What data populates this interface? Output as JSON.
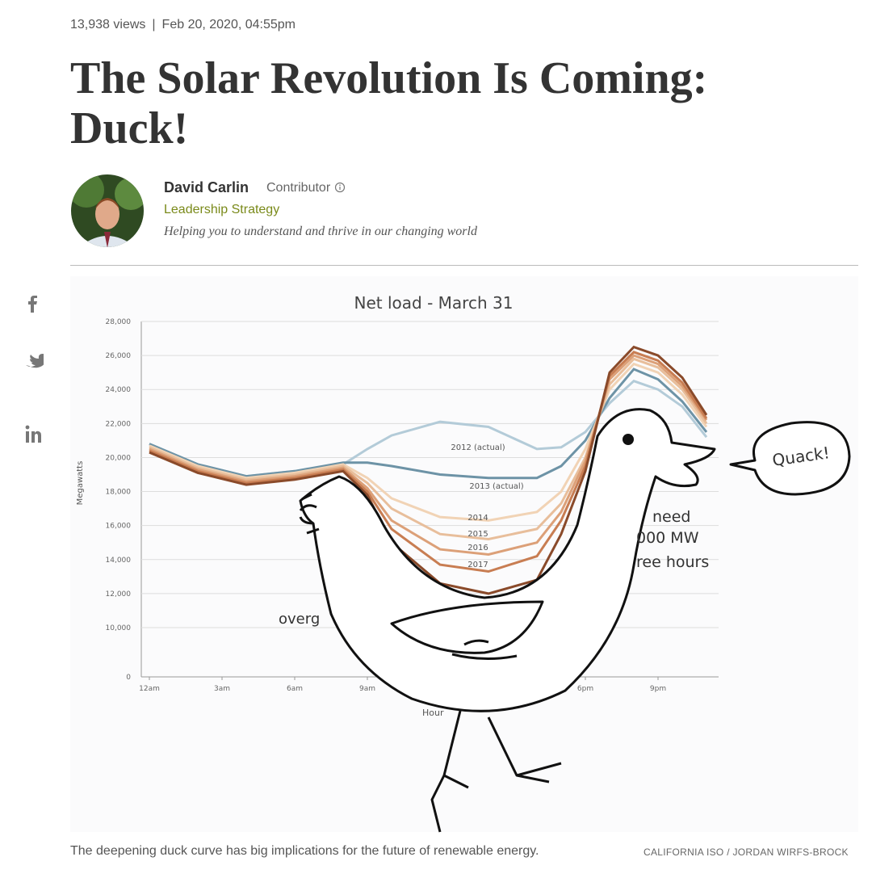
{
  "header": {
    "views": "13,938 views",
    "separator": "|",
    "date": "Feb 20, 2020, 04:55pm",
    "title": "The Solar Revolution Is Coming: Duck!"
  },
  "author": {
    "name": "David Carlin",
    "role": "Contributor",
    "section": "Leadership Strategy",
    "tagline": "Helping you to understand and thrive in our changing world"
  },
  "chart_data": {
    "type": "line",
    "title": "Net load - March 31",
    "ylabel": "Megawatts",
    "xlabel": "Hour",
    "x": [
      0,
      2,
      4,
      6,
      8,
      9,
      10,
      12,
      14,
      16,
      17,
      18,
      19,
      20,
      21,
      22,
      23
    ],
    "xlim": [
      0,
      23
    ],
    "xticks": [
      {
        "value": 0,
        "label": "12am"
      },
      {
        "value": 3,
        "label": "3am"
      },
      {
        "value": 6,
        "label": "6am"
      },
      {
        "value": 9,
        "label": "9am"
      },
      {
        "value": 18,
        "label": "6pm"
      },
      {
        "value": 21,
        "label": "9pm"
      }
    ],
    "ylim": [
      0,
      28000
    ],
    "yticks": [
      0,
      {
        "value": 10000,
        "label": "10,000"
      },
      {
        "value": 12000,
        "label": "12,000"
      },
      {
        "value": 14000,
        "label": "14,000"
      },
      {
        "value": 16000,
        "label": "16,000"
      },
      {
        "value": 18000,
        "label": "18,000"
      },
      {
        "value": 20000,
        "label": "20,000"
      },
      {
        "value": 22000,
        "label": "22,000"
      },
      {
        "value": 24000,
        "label": "24,000"
      },
      {
        "value": 26000,
        "label": "26,000"
      },
      {
        "value": 28000,
        "label": "28,000"
      }
    ],
    "grid": true,
    "series": [
      {
        "name": "2012 (actual)",
        "color": "#b3cbd8",
        "values": [
          20800,
          19600,
          18900,
          19200,
          19600,
          20500,
          21300,
          22100,
          21800,
          20500,
          20600,
          21500,
          23200,
          24500,
          24000,
          23000,
          21200
        ]
      },
      {
        "name": "2013 (actual)",
        "color": "#6d93a6",
        "values": [
          20800,
          19600,
          18900,
          19200,
          19700,
          19700,
          19500,
          19000,
          18800,
          18800,
          19500,
          21000,
          23500,
          25200,
          24600,
          23300,
          21500
        ]
      },
      {
        "name": "2014",
        "color": "#f1d3b5",
        "values": [
          20700,
          19500,
          18800,
          19100,
          19600,
          18800,
          17600,
          16500,
          16300,
          16800,
          18000,
          20500,
          24000,
          25500,
          25000,
          23700,
          21800
        ]
      },
      {
        "name": "2015",
        "color": "#e8be9b",
        "values": [
          20600,
          19400,
          18700,
          19000,
          19500,
          18500,
          17000,
          15500,
          15200,
          15800,
          17300,
          20000,
          24300,
          25800,
          25300,
          24000,
          22000
        ]
      },
      {
        "name": "2016",
        "color": "#dca078",
        "values": [
          20500,
          19300,
          18600,
          18900,
          19400,
          18200,
          16300,
          14600,
          14300,
          15000,
          16800,
          19800,
          24600,
          26000,
          25500,
          24200,
          22200
        ]
      },
      {
        "name": "2017",
        "color": "#c87d52",
        "values": [
          20400,
          19200,
          18500,
          18800,
          19300,
          18000,
          15800,
          13700,
          13300,
          14200,
          16300,
          19500,
          24800,
          26200,
          25700,
          24400,
          22300
        ]
      },
      {
        "color": "#8a4a2a",
        "values": [
          20300,
          19100,
          18400,
          18700,
          19200,
          17800,
          15000,
          12600,
          12000,
          12800,
          15500,
          19200,
          25000,
          26500,
          26000,
          24700,
          22500
        ]
      }
    ],
    "annotations": [
      "overg",
      "need",
      "000 MW",
      "ree hours",
      "Quack!"
    ]
  },
  "caption": {
    "text": "The deepening duck curve has big implications for the future of renewable energy.",
    "credit": "CALIFORNIA ISO / JORDAN WIRFS-BROCK"
  }
}
